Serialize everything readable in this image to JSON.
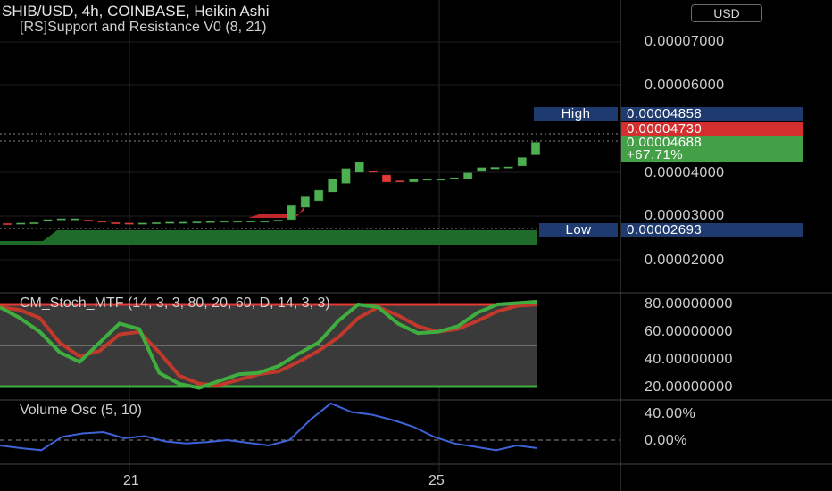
{
  "header": {
    "title": "SHIB/USD, 4h, COINBASE, Heikin Ashi",
    "indicator": "[RS]Support and Resistance V0 (8, 21)",
    "currency": "USD"
  },
  "price_axis": {
    "labels": [
      "0.00007000",
      "0.00006000",
      "0.00004000",
      "0.00003000",
      "0.00002000"
    ]
  },
  "tags": {
    "high_label": "High",
    "high_value": "0.00004858",
    "close_value": "0.00004730",
    "last_value": "0.00004688",
    "change": "+67.71%",
    "low_label": "Low",
    "low_value": "0.00002693"
  },
  "stoch": {
    "title": "CM_Stoch_MTF (14, 3, 3, 80, 20, 60, D, 14, 3, 3)",
    "axis_labels": [
      "80.00000000",
      "60.00000000",
      "40.00000000",
      "20.00000000"
    ]
  },
  "volume": {
    "title": "Volume Osc (5, 10)",
    "axis_labels": [
      "40.00%",
      "0.00%"
    ]
  },
  "time_axis": {
    "labels": [
      "21",
      "25"
    ]
  },
  "colors": {
    "up": "#4caf50",
    "down": "#e53935",
    "high_low_tag": "#1e3a6e",
    "close_tag": "#d32f2f",
    "last_tag": "#43a047",
    "support_zone": "#1e6b2a",
    "stoch_fast": "#3fae3f",
    "stoch_slow": "#c0392b",
    "volume_line": "#3d63d6"
  },
  "chart_data": {
    "type": "candlestick",
    "price_candles": [
      {
        "o": 2.84,
        "c": 2.82
      },
      {
        "o": 2.83,
        "c": 2.85
      },
      {
        "o": 2.85,
        "c": 2.86
      },
      {
        "o": 2.88,
        "c": 2.93
      },
      {
        "o": 2.92,
        "c": 2.95
      },
      {
        "o": 2.94,
        "c": 2.95
      },
      {
        "o": 2.92,
        "c": 2.9
      },
      {
        "o": 2.9,
        "c": 2.87
      },
      {
        "o": 2.86,
        "c": 2.84
      },
      {
        "o": 2.85,
        "c": 2.84
      },
      {
        "o": 2.84,
        "c": 2.85
      },
      {
        "o": 2.85,
        "c": 2.86
      },
      {
        "o": 2.86,
        "c": 2.87
      },
      {
        "o": 2.86,
        "c": 2.87
      },
      {
        "o": 2.87,
        "c": 2.88
      },
      {
        "o": 2.88,
        "c": 2.89
      },
      {
        "o": 2.89,
        "c": 2.9
      },
      {
        "o": 2.88,
        "c": 2.9
      },
      {
        "o": 2.89,
        "c": 2.9
      },
      {
        "o": 2.9,
        "c": 2.9
      },
      {
        "o": 2.88,
        "c": 2.92
      },
      {
        "o": 2.92,
        "c": 3.25
      },
      {
        "o": 3.2,
        "c": 3.45
      },
      {
        "o": 3.35,
        "c": 3.6
      },
      {
        "o": 3.55,
        "c": 3.85
      },
      {
        "o": 3.75,
        "c": 4.1
      },
      {
        "o": 4.0,
        "c": 4.25
      },
      {
        "o": 4.05,
        "c": 4.0
      },
      {
        "o": 3.95,
        "c": 3.78
      },
      {
        "o": 3.82,
        "c": 3.78
      },
      {
        "o": 3.78,
        "c": 3.86
      },
      {
        "o": 3.82,
        "c": 3.86
      },
      {
        "o": 3.84,
        "c": 3.86
      },
      {
        "o": 3.85,
        "c": 3.89
      },
      {
        "o": 3.85,
        "c": 4.0
      },
      {
        "o": 4.02,
        "c": 4.12
      },
      {
        "o": 4.08,
        "c": 4.13
      },
      {
        "o": 4.1,
        "c": 4.14
      },
      {
        "o": 4.15,
        "c": 4.35
      },
      {
        "o": 4.4,
        "c": 4.7
      }
    ],
    "price_unit": "1e-5 USD",
    "support_band": [
      2.35,
      2.74
    ],
    "stoch_fast": [
      78,
      70,
      60,
      45,
      38,
      52,
      66,
      62,
      30,
      22,
      19,
      24,
      29,
      30,
      35,
      44,
      52,
      68,
      80,
      78,
      66,
      59,
      60,
      64,
      74,
      80,
      81,
      82
    ],
    "stoch_slow": [
      78,
      76,
      70,
      52,
      42,
      46,
      58,
      60,
      45,
      28,
      22,
      21,
      25,
      29,
      31,
      38,
      46,
      56,
      70,
      78,
      72,
      64,
      60,
      62,
      68,
      75,
      79,
      80
    ],
    "stoch_levels": [
      80,
      60,
      20
    ],
    "volume_osc": [
      -8,
      -12,
      -15,
      5,
      10,
      12,
      3,
      6,
      -2,
      -5,
      -3,
      0,
      -4,
      -8,
      0,
      30,
      55,
      42,
      38,
      30,
      20,
      5,
      -5,
      -10,
      -15,
      -8,
      -12
    ],
    "volume_ylim": [
      -20,
      55
    ],
    "x_ticks": [
      "21",
      "25"
    ]
  }
}
